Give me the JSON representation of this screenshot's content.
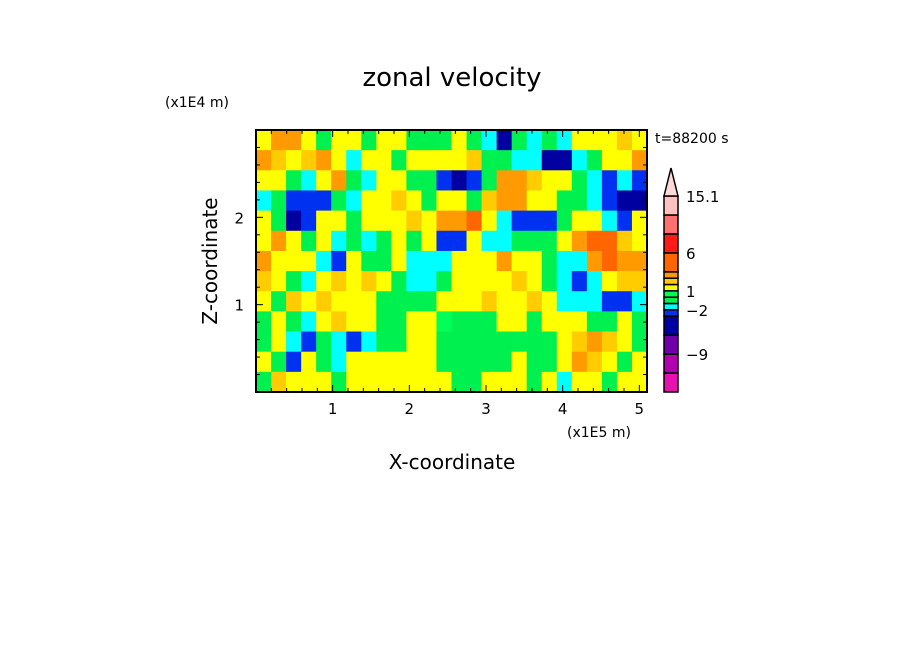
{
  "chart_data": {
    "type": "heatmap",
    "title": "zonal velocity",
    "xlabel": "X-coordinate",
    "ylabel": "Z-coordinate",
    "x_scale_label": "(x1E5 m)",
    "y_scale_label": "(x1E4 m)",
    "time_label": "t=88200 s",
    "xlim": [
      0,
      5.1
    ],
    "ylim": [
      0,
      3.0
    ],
    "xticks": [
      1,
      2,
      3,
      4,
      5
    ],
    "xtick_labels": [
      "1",
      "2",
      "3",
      "4",
      "5"
    ],
    "yticks": [
      1,
      2
    ],
    "ytick_labels": [
      "1",
      "2"
    ],
    "colorbar": {
      "edges": [
        -15,
        -12,
        -9,
        -6,
        -3,
        -2,
        -1,
        0,
        1,
        2,
        3,
        4,
        6,
        9,
        12,
        15.1
      ],
      "colors": [
        "#e810b0",
        "#b000b0",
        "#7000a8",
        "#0000a0",
        "#0030f0",
        "#00ffff",
        "#00f050",
        "#00ff58",
        "#ffff00",
        "#ffcc00",
        "#ff9a00",
        "#ff6600",
        "#ff1a1a",
        "#ff7070",
        "#ffc0c0"
      ],
      "over_color": "#ffd8d8",
      "labels": [
        {
          "value": 15.1,
          "text": "15.1"
        },
        {
          "value": 6,
          "text": "6"
        },
        {
          "value": 1,
          "text": "1"
        },
        {
          "value": -2,
          "text": "-2"
        },
        {
          "value": -9,
          "text": "-9"
        }
      ]
    },
    "grid_rows_top_to_bottom": [
      [
        1.5,
        3.5,
        3.5,
        1.5,
        -0.5,
        1.5,
        1.5,
        -0.5,
        1.5,
        1.5,
        -0.5,
        -0.5,
        -0.5,
        1.5,
        -0.5,
        -1.5,
        -4.5,
        -0.5,
        -1.5,
        -0.5,
        -1.5,
        1.5,
        1.5,
        1.5,
        2.5,
        1.5
      ],
      [
        3.5,
        2.5,
        1.5,
        2.5,
        3.5,
        1.5,
        -1.5,
        1.5,
        1.5,
        -0.5,
        1.5,
        1.5,
        1.5,
        1.5,
        2.5,
        -0.5,
        -0.5,
        -1.5,
        -1.5,
        -4.5,
        -4.5,
        -1.5,
        -0.5,
        1.5,
        1.5,
        3.5
      ],
      [
        1.5,
        1.5,
        -0.5,
        -1.5,
        1.5,
        3.5,
        -0.5,
        -1.5,
        1.5,
        1.5,
        -0.5,
        -0.5,
        -2.5,
        -4.5,
        -2.5,
        -0.5,
        3.5,
        3.5,
        2.5,
        1.5,
        1.5,
        -0.5,
        -1.5,
        -2.5,
        -1.5,
        -2.5
      ],
      [
        -1.5,
        -0.5,
        -2.5,
        -2.5,
        -2.5,
        -0.5,
        -1.5,
        1.5,
        1.5,
        2.5,
        1.5,
        -0.5,
        1.5,
        1.5,
        -0.5,
        2.5,
        3.5,
        3.5,
        1.5,
        1.5,
        -0.5,
        -0.5,
        -1.5,
        -2.5,
        -4.5,
        -4.5
      ],
      [
        1.5,
        -0.5,
        -4.5,
        -2.5,
        1.5,
        1.5,
        -0.5,
        1.5,
        1.5,
        1.5,
        2.5,
        1.5,
        3.5,
        3.5,
        5,
        1.5,
        -1.5,
        -2.5,
        -2.5,
        -2.5,
        -0.5,
        1.5,
        1.5,
        -1.5,
        -2.5,
        1.5
      ],
      [
        1.5,
        3.5,
        1.5,
        -0.5,
        1.5,
        -1.5,
        -0.5,
        -1.5,
        -0.5,
        1.5,
        -0.5,
        1.5,
        -2.5,
        -2.5,
        1.5,
        -1.5,
        -1.5,
        -0.5,
        -0.5,
        -0.5,
        1.5,
        3.5,
        5,
        5,
        2.5,
        1.5
      ],
      [
        3.5,
        1.5,
        1.5,
        1.5,
        -1.5,
        -2.5,
        1.5,
        -0.5,
        -0.5,
        1.5,
        -1.5,
        -1.5,
        -1.5,
        1.5,
        1.5,
        1.5,
        3.5,
        1.5,
        1.5,
        -0.5,
        -1.5,
        -1.5,
        3.5,
        5,
        3.5,
        3.5
      ],
      [
        2.5,
        1.5,
        -0.5,
        -1.5,
        1.5,
        2.5,
        1.5,
        2.5,
        1.5,
        -0.5,
        -1.5,
        -1.5,
        -0.5,
        1.5,
        1.5,
        1.5,
        1.5,
        2.5,
        1.5,
        -0.5,
        -1.5,
        -2.5,
        -1.5,
        1.5,
        2.5,
        2.5
      ],
      [
        1.5,
        -0.5,
        2.5,
        1.5,
        2.5,
        1.5,
        1.5,
        1.5,
        -0.5,
        -0.5,
        -0.5,
        -0.5,
        1.5,
        1.5,
        1.5,
        2.5,
        1.5,
        1.5,
        2.5,
        1.5,
        -1.5,
        -1.5,
        -1.5,
        -2.5,
        -2.5,
        -1.5
      ],
      [
        -0.5,
        1.5,
        -0.5,
        -1.5,
        1.5,
        2.5,
        1.5,
        1.5,
        -0.5,
        -0.5,
        1.5,
        1.5,
        0.5,
        -0.5,
        -0.5,
        -0.5,
        1.5,
        1.5,
        -0.5,
        1.5,
        1.5,
        1.5,
        -0.5,
        -0.5,
        1.5,
        -0.5
      ],
      [
        -0.5,
        1.5,
        -1.5,
        -2.5,
        -0.5,
        -1.5,
        -2.5,
        -1.5,
        -0.5,
        -0.5,
        1.5,
        1.5,
        -0.5,
        -0.5,
        -0.5,
        -0.5,
        -0.5,
        -0.5,
        -0.5,
        -0.5,
        1.5,
        2.5,
        3.5,
        2.5,
        1.5,
        -0.5
      ],
      [
        1.5,
        -0.5,
        -2.5,
        1.5,
        -0.5,
        -1.5,
        1.5,
        1.5,
        1.5,
        1.5,
        1.5,
        1.5,
        -0.5,
        -0.5,
        -0.5,
        -0.5,
        -0.5,
        1.5,
        -0.5,
        -0.5,
        1.5,
        3.5,
        2.5,
        1.5,
        -0.5,
        1.5
      ],
      [
        -0.5,
        2.5,
        1.5,
        1.5,
        1.5,
        -0.5,
        1.5,
        1.5,
        1.5,
        1.5,
        1.5,
        1.5,
        1.5,
        -0.5,
        -0.5,
        1.5,
        1.5,
        1.5,
        -0.5,
        1.5,
        -1.5,
        1.5,
        1.5,
        -0.5,
        1.5,
        1.5
      ]
    ]
  }
}
